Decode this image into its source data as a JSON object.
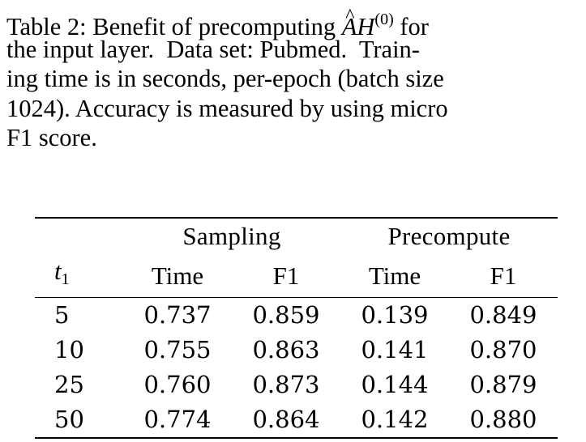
{
  "caption": {
    "line1_prefix": "Table 2: Benefit of precomputing ",
    "math_A": "A",
    "math_H": "H",
    "math_sup": "(0)",
    "line1_suffix": " for",
    "line2": "the input layer.  Data set: Pubmed.  Train-",
    "line3": "ing time is in seconds, per-epoch (batch size",
    "line4": "1024). Accuracy is measured by using micro",
    "line5": "F1 score."
  },
  "table": {
    "group_headers": [
      "Sampling",
      "Precompute"
    ],
    "col_headers": {
      "t_symbol": "t",
      "t_subscript": "1",
      "cols": [
        "Time",
        "F1",
        "Time",
        "F1"
      ]
    },
    "rows": [
      {
        "t1": "5",
        "cells": [
          "0.737",
          "0.859",
          "0.139",
          "0.849"
        ]
      },
      {
        "t1": "10",
        "cells": [
          "0.755",
          "0.863",
          "0.141",
          "0.870"
        ]
      },
      {
        "t1": "25",
        "cells": [
          "0.760",
          "0.873",
          "0.144",
          "0.879"
        ]
      },
      {
        "t1": "50",
        "cells": [
          "0.774",
          "0.864",
          "0.142",
          "0.880"
        ]
      }
    ]
  }
}
